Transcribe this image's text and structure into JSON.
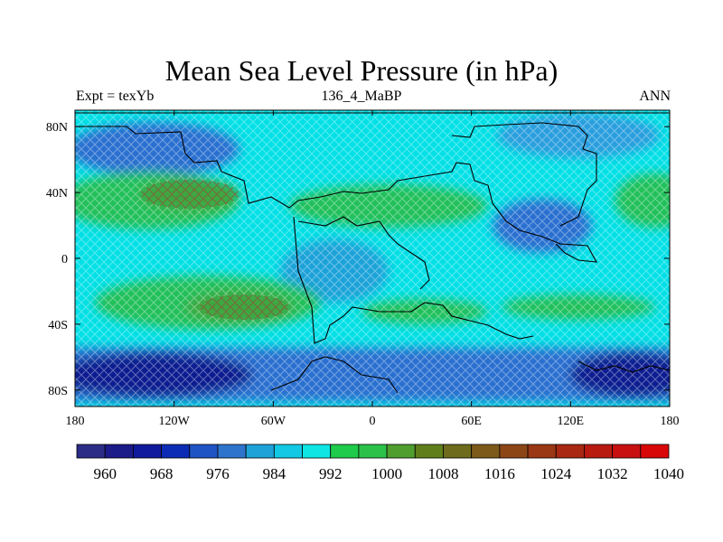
{
  "title": "Mean Sea Level Pressure (in hPa)",
  "left_string": "Expt = texYb",
  "center_string": "136_4_MaBP",
  "right_string": "ANN",
  "x_ticks": [
    "180",
    "120W",
    "60W",
    "0",
    "60E",
    "120E",
    "180"
  ],
  "y_ticks": [
    "80N",
    "40N",
    "0",
    "40S",
    "80S"
  ],
  "colorbar": {
    "colors": [
      "#2a2c86",
      "#1b1b8a",
      "#101a9c",
      "#0c2cb5",
      "#1f54c4",
      "#2f74cc",
      "#1ea2d8",
      "#12c8e4",
      "#0fe6e4",
      "#1ecb4a",
      "#2cc24a",
      "#4f9e2e",
      "#607f1a",
      "#6e6b1c",
      "#7d5a1a",
      "#8c4616",
      "#9a3714",
      "#a82812",
      "#b81a10",
      "#c81010",
      "#d80808"
    ],
    "labels": [
      "960",
      "968",
      "976",
      "984",
      "992",
      "1000",
      "1008",
      "1016",
      "1024",
      "1032",
      "1040"
    ]
  },
  "field_colors": {
    "ocean_fill": "#00e0e6",
    "high_belt": "#20c05a",
    "high_core": "#5a7a24",
    "low_belt": "#2a70d0",
    "deep_low": "#0a1a90",
    "coastline": "#000000"
  }
}
